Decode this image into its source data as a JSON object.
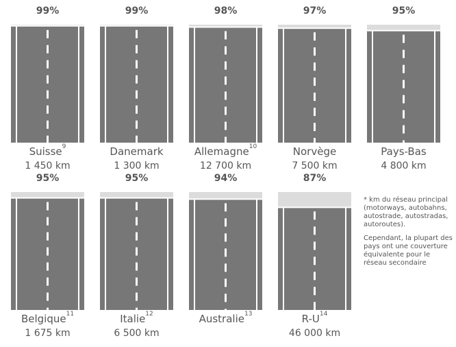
{
  "chart_data": {
    "type": "road",
    "categories": [
      "Suisse",
      "Danemark",
      "Allemagne",
      "Norvège",
      "Pays-Bas",
      "Belgique",
      "Italie",
      "Australie",
      "R-U"
    ],
    "category_notes": [
      "9",
      null,
      "10",
      null,
      null,
      "11",
      "12",
      "13",
      "14"
    ],
    "values": [
      99,
      99,
      98,
      97,
      95,
      95,
      95,
      94,
      87
    ],
    "value_labels": [
      "99%",
      "99%",
      "98%",
      "97%",
      "95%",
      "95%",
      "95%",
      "94%",
      "87%"
    ],
    "lengths": [
      "1 450 km",
      "1 300 km",
      "12 700 km",
      "7 500 km",
      "4 800 km",
      "1 675 km",
      "6 500 km",
      "",
      "46 000 km"
    ],
    "ylim": [
      0,
      100
    ],
    "color": "#777777",
    "note": [
      "* km du réseau principal (motorways, autobahns, autostrade, autostradas, autoroutes).",
      "Cependant, la plupart des pays ont une couverture équivalente pour le réseau secondaire"
    ]
  }
}
